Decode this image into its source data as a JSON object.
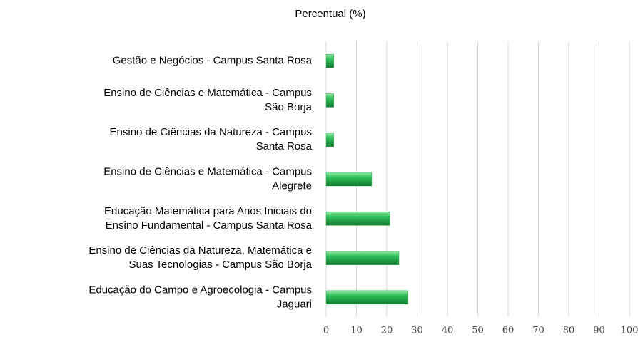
{
  "chart_data": {
    "type": "bar",
    "orientation": "horizontal",
    "title": "Percentual (%)",
    "categories": [
      "Gestão e Negócios - Campus Santa Rosa",
      "Ensino de Ciências e Matemática - Campus\nSão Borja",
      "Ensino de Ciências da Natureza - Campus\nSanta Rosa",
      "Ensino de Ciências e Matemática - Campus\nAlegrete",
      "Educação Matemática para Anos Iniciais do\nEnsino Fundamental - Campus Santa Rosa",
      "Ensino de Ciências da Natureza, Matemática e\nSuas Tecnologias - Campus São Borja",
      "Educação do Campo e Agroecologia - Campus\nJaguari"
    ],
    "values": [
      2.5,
      2.5,
      2.5,
      15,
      21,
      24,
      27
    ],
    "color": "#22b14c",
    "xlim": [
      0,
      100
    ],
    "xticks": [
      0,
      10,
      20,
      30,
      40,
      50,
      60,
      70,
      80,
      90,
      100
    ],
    "grid": true
  }
}
